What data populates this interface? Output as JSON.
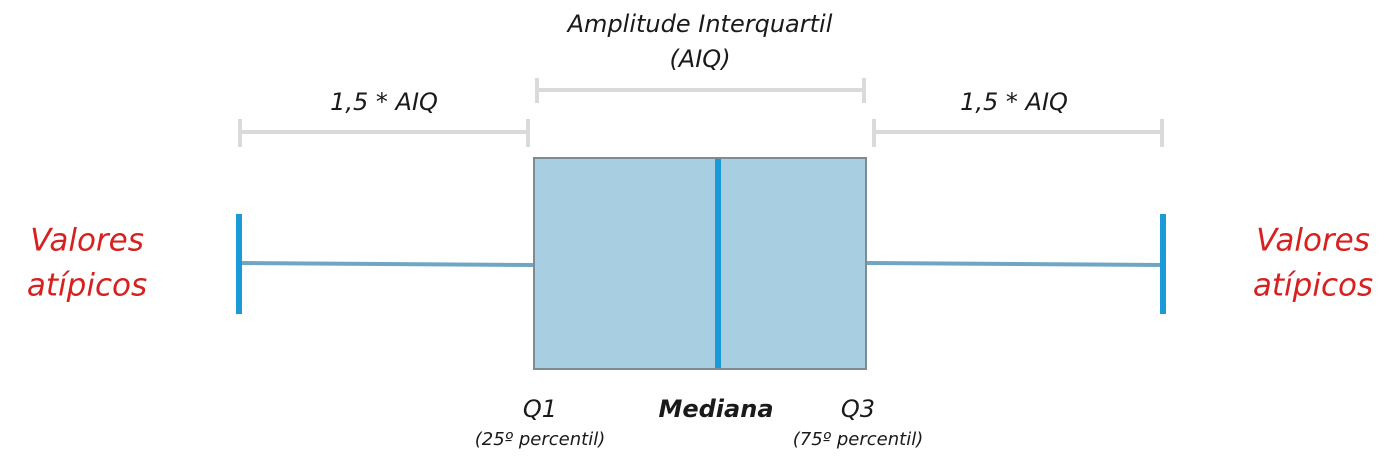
{
  "top_label": {
    "lines": [
      "Amplitude Interquartil",
      "(AIQ)"
    ]
  },
  "left_range": "1,5 * AIQ",
  "right_range": "1,5 * AIQ",
  "left_outliers": {
    "lines": [
      "Valores",
      "atípicos"
    ]
  },
  "right_outliers": {
    "lines": [
      "Valores",
      "atípicos"
    ]
  },
  "q1": {
    "label": "Q1",
    "note": "(25º percentil)"
  },
  "median": "Mediana",
  "q3": {
    "label": "Q3",
    "note": "(75º percentil)"
  }
}
